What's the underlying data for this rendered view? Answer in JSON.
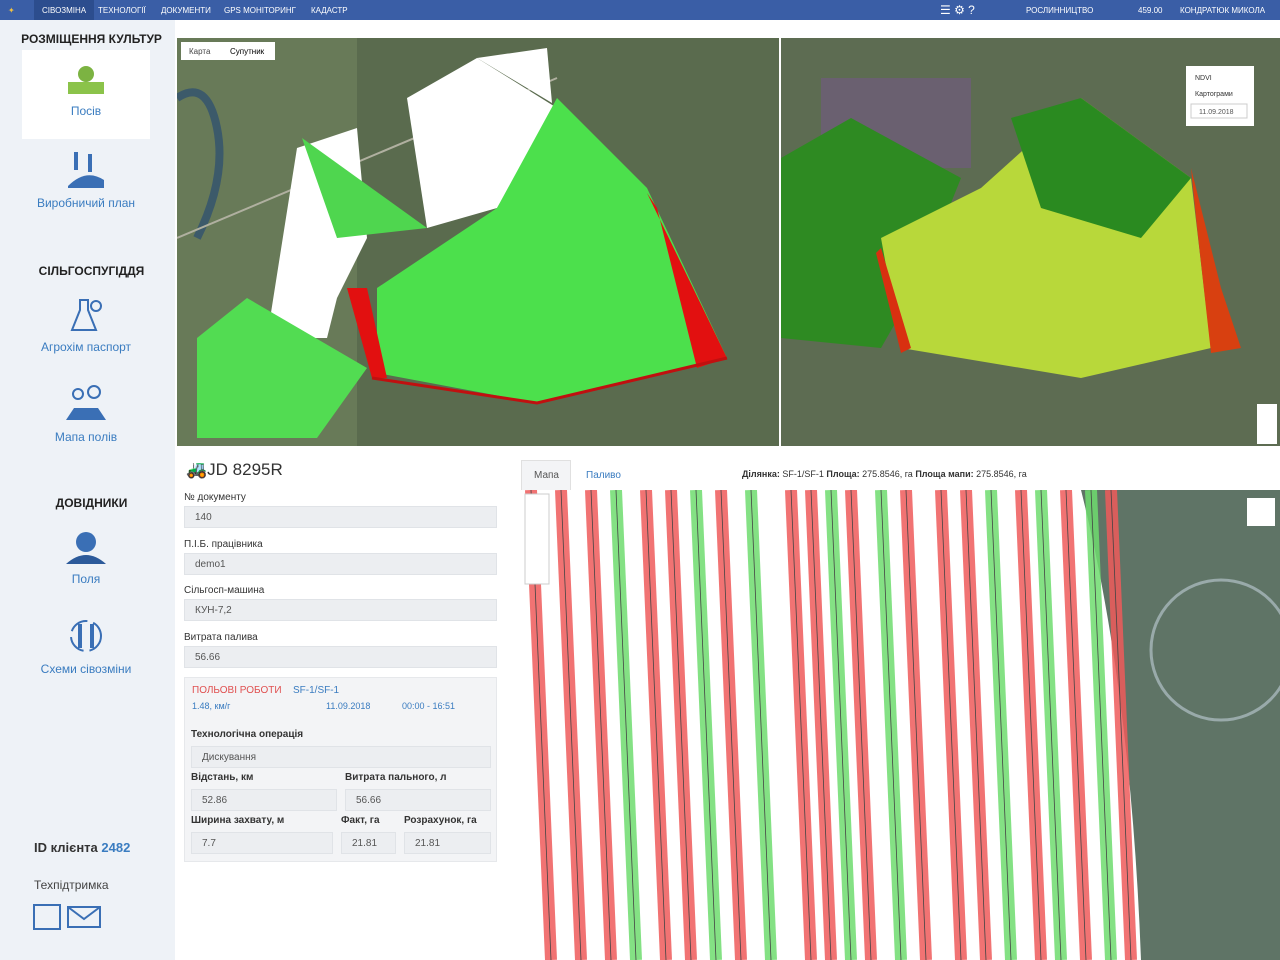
{
  "nav": {
    "items": [
      "Сівозміна",
      "Технології",
      "Документи",
      "GPS моніторинг",
      "Кадастр"
    ],
    "department": "Рослинництво",
    "balance": "459.00",
    "user": "Кондратюк Микола"
  },
  "sidebar": {
    "crops_title": "Розміщення культур",
    "sowing": "Посів",
    "production_plan": "Виробничий план",
    "land_title": "Сільгоспугіддя",
    "agrochem": "Агрохім паспорт",
    "field_map": "Мапа полів",
    "refs_title": "Довідники",
    "fields": "Поля",
    "rotation_schemes": "Схеми сівозміни",
    "client_id_label": "ID клієнта",
    "client_id": "2482",
    "support": "Техпідтримка"
  },
  "map_left": {
    "tab_map": "Карта",
    "tab_satellite": "Супутник"
  },
  "map_right": {
    "layer_ndvi": "NDVI",
    "layer_cartograms": "Картограми",
    "date": "11.09.2018"
  },
  "form": {
    "vehicle": "JD 8295R",
    "doc_no_label": "№ документу",
    "doc_no": "140",
    "worker_label": "П.І.Б. працівника",
    "worker": "demo1",
    "machine_label": "Сільгосп-машина",
    "machine": "КУН-7,2",
    "fuel_label": "Витрата палива",
    "fuel": "56.66",
    "work": {
      "title": "ПОЛЬОВІ РОБОТИ",
      "field": "SF-1/SF-1",
      "speed": "1.48, км/г",
      "date": "11.09.2018",
      "time": "00:00 - 16:51",
      "operation_label": "Технологічна операція",
      "operation": "Дискування",
      "distance_label": "Відстань, км",
      "distance": "52.86",
      "fuel_used_label": "Витрата пального, л",
      "fuel_used": "56.66",
      "width_label": "Ширина захвату, м",
      "width": "7.7",
      "fact_label": "Факт, га",
      "fact": "21.81",
      "calc_label": "Розрахунок, га",
      "calc": "21.81"
    }
  },
  "track": {
    "tab_map": "Мапа",
    "tab_fuel": "Паливо",
    "plot_label": "Ділянка:",
    "plot": "SF-1/SF-1",
    "area_label": "Площа:",
    "area": "275.8546, га",
    "map_area_label": "Площа мапи:",
    "map_area": "275.8546, га"
  }
}
